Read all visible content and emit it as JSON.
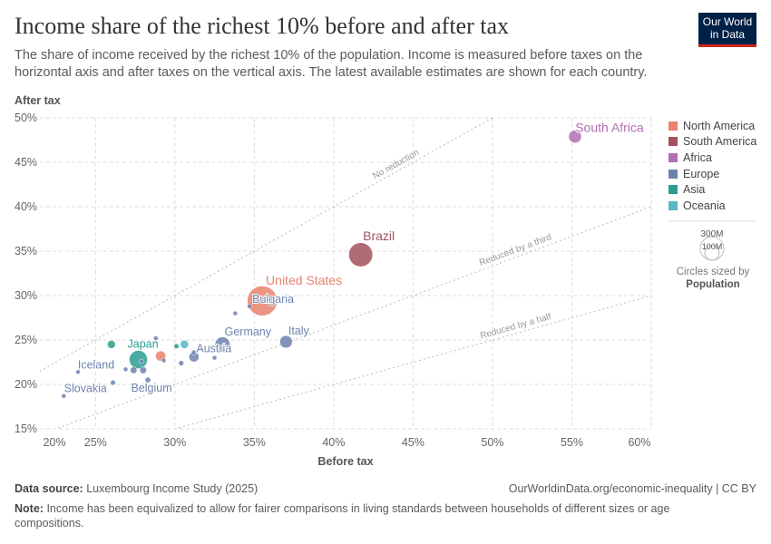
{
  "header": {
    "title": "Income share of the richest 10% before and after tax",
    "subtitle": "The share of income received by the richest 10% of the population. Income is measured before taxes on the horizontal axis and after taxes on the vertical axis. The latest available estimates are shown for each country.",
    "logo": "Our World in Data"
  },
  "footer": {
    "source_label": "Data source:",
    "source": "Luxembourg Income Study (2025)",
    "url": "OurWorldinData.org/economic-inequality | CC BY",
    "note_label": "Note:",
    "note": "Income has been equivalized to allow for fairer comparisons in living standards between households of different sizes or age compositions."
  },
  "chart_data": {
    "type": "scatter",
    "title": "Income share of the richest 10% before and after tax",
    "xlabel": "Before tax",
    "ylabel": "After tax",
    "xlim": [
      21.5,
      60
    ],
    "ylim": [
      15,
      50
    ],
    "xticks": [
      "20%",
      "25%",
      "30%",
      "35%",
      "40%",
      "45%",
      "50%",
      "55%",
      "60%"
    ],
    "xtick_values": [
      20,
      25,
      30,
      35,
      40,
      45,
      50,
      55,
      60
    ],
    "yticks": [
      "15%",
      "20%",
      "25%",
      "30%",
      "35%",
      "40%",
      "45%",
      "50%"
    ],
    "ytick_values": [
      15,
      20,
      25,
      30,
      35,
      40,
      45,
      50
    ],
    "grid": true,
    "reference_lines": [
      {
        "label": "No reduction",
        "factor": 1
      },
      {
        "label": "Reduced by a third",
        "factor": 0.6667
      },
      {
        "label": "Reduced by a half",
        "factor": 0.5
      }
    ],
    "legend": {
      "placement": "right",
      "entries": [
        {
          "name": "North America",
          "color": "#e9826f"
        },
        {
          "name": "South America",
          "color": "#a2525c"
        },
        {
          "name": "Africa",
          "color": "#b16fb5"
        },
        {
          "name": "Europe",
          "color": "#6d83ae"
        },
        {
          "name": "Asia",
          "color": "#2c9c8f"
        },
        {
          "name": "Oceania",
          "color": "#58b7c4"
        }
      ]
    },
    "size_legend": {
      "values": [
        "300M",
        "100M"
      ],
      "caption": "Circles sized by",
      "variable": "Population"
    },
    "points": [
      {
        "label": "South Africa",
        "region": "Africa",
        "x": 55.2,
        "y": 47.9,
        "pop": 62
      },
      {
        "label": "Brazil",
        "region": "South America",
        "x": 41.7,
        "y": 34.6,
        "pop": 215
      },
      {
        "label": "United States",
        "region": "North America",
        "x": 35.5,
        "y": 29.4,
        "pop": 335
      },
      {
        "label": "Bulgaria",
        "region": "Europe",
        "x": 34.7,
        "y": 28.8,
        "pop": 6.5
      },
      {
        "label": "Italy",
        "region": "Europe",
        "x": 37.0,
        "y": 24.8,
        "pop": 59
      },
      {
        "label": "Germany",
        "region": "Europe",
        "x": 33.0,
        "y": 24.5,
        "pop": 84
      },
      {
        "label": "Austria",
        "region": "Europe",
        "x": 31.2,
        "y": 23.6,
        "pop": 9
      },
      {
        "label": "Japan",
        "region": "Asia",
        "x": 27.7,
        "y": 22.8,
        "pop": 124
      },
      {
        "label": "Iceland",
        "region": "Europe",
        "x": 23.9,
        "y": 21.4,
        "pop": 0.4
      },
      {
        "label": "Slovakia",
        "region": "Europe",
        "x": 23.0,
        "y": 18.7,
        "pop": 5.4
      },
      {
        "label": "Belgium",
        "region": "Europe",
        "x": 28.3,
        "y": 20.5,
        "pop": 11.7
      },
      {
        "label": "",
        "region": "Asia",
        "x": 26.0,
        "y": 24.5,
        "pop": 24
      },
      {
        "label": "",
        "region": "Asia",
        "x": 30.1,
        "y": 24.3,
        "pop": 9.5
      },
      {
        "label": "",
        "region": "Oceania",
        "x": 30.6,
        "y": 24.5,
        "pop": 26
      },
      {
        "label": "",
        "region": "North America",
        "x": 29.1,
        "y": 23.2,
        "pop": 39
      },
      {
        "label": "",
        "region": "Europe",
        "x": 26.9,
        "y": 21.7,
        "pop": 2
      },
      {
        "label": "",
        "region": "Europe",
        "x": 27.4,
        "y": 21.6,
        "pop": 17
      },
      {
        "label": "",
        "region": "Europe",
        "x": 28.0,
        "y": 21.6,
        "pop": 17.5
      },
      {
        "label": "",
        "region": "Europe",
        "x": 26.1,
        "y": 20.2,
        "pop": 10
      },
      {
        "label": "",
        "region": "Europe",
        "x": 29.3,
        "y": 22.7,
        "pop": 2
      },
      {
        "label": "",
        "region": "Europe",
        "x": 30.4,
        "y": 22.4,
        "pop": 10
      },
      {
        "label": "",
        "region": "Europe",
        "x": 31.2,
        "y": 23.1,
        "pop": 38
      },
      {
        "label": "",
        "region": "Europe",
        "x": 32.5,
        "y": 23.0,
        "pop": 2
      },
      {
        "label": "",
        "region": "Europe",
        "x": 33.8,
        "y": 28.0,
        "pop": 1.3
      },
      {
        "label": "",
        "region": "Europe",
        "x": 28.8,
        "y": 25.2,
        "pop": 5
      },
      {
        "label": "",
        "region": "Europe",
        "x": 27.9,
        "y": 22.6,
        "pop": 3
      }
    ]
  }
}
